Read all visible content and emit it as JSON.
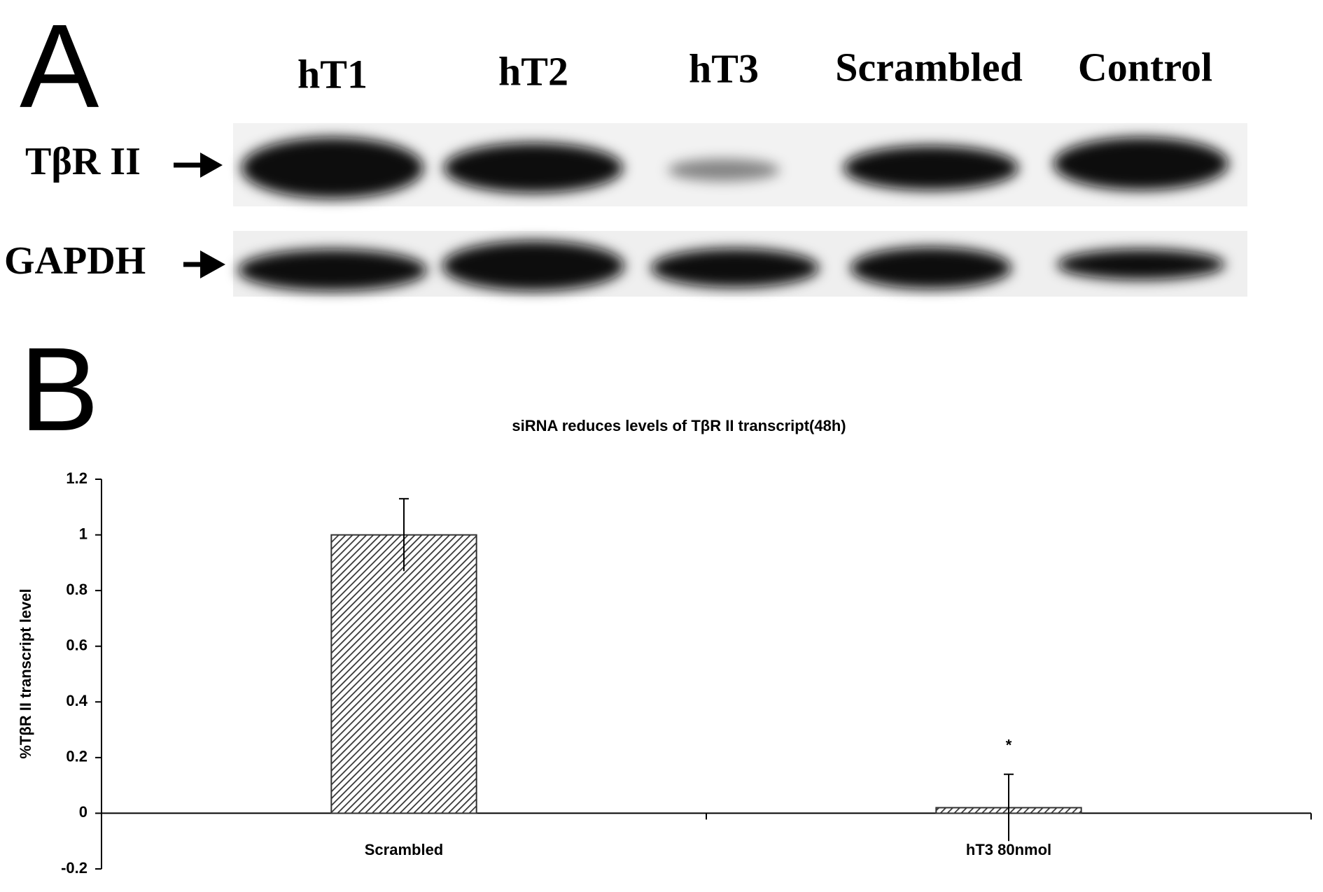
{
  "panel_a": {
    "label": "A",
    "lanes": [
      "hT1",
      "hT2",
      "hT3",
      "Scrambled",
      "Control"
    ],
    "rows": [
      "TβR II",
      "GAPDH"
    ]
  },
  "panel_b": {
    "label": "B"
  },
  "chart_data": {
    "type": "bar",
    "title": "siRNA reduces levels of TβR II transcript(48h)",
    "y_label": "%TβR II transcript level",
    "categories": [
      "Scrambled",
      "hT3 80nmol"
    ],
    "values": [
      1,
      0.02
    ],
    "errors": [
      0.13,
      0.12
    ],
    "color": "#333333",
    "annotation": "*",
    "ylim": [
      -0.2,
      1.2
    ],
    "yticks": [
      -0.2,
      0,
      0.2,
      0.4,
      0.6,
      0.8,
      1,
      1.2
    ]
  }
}
